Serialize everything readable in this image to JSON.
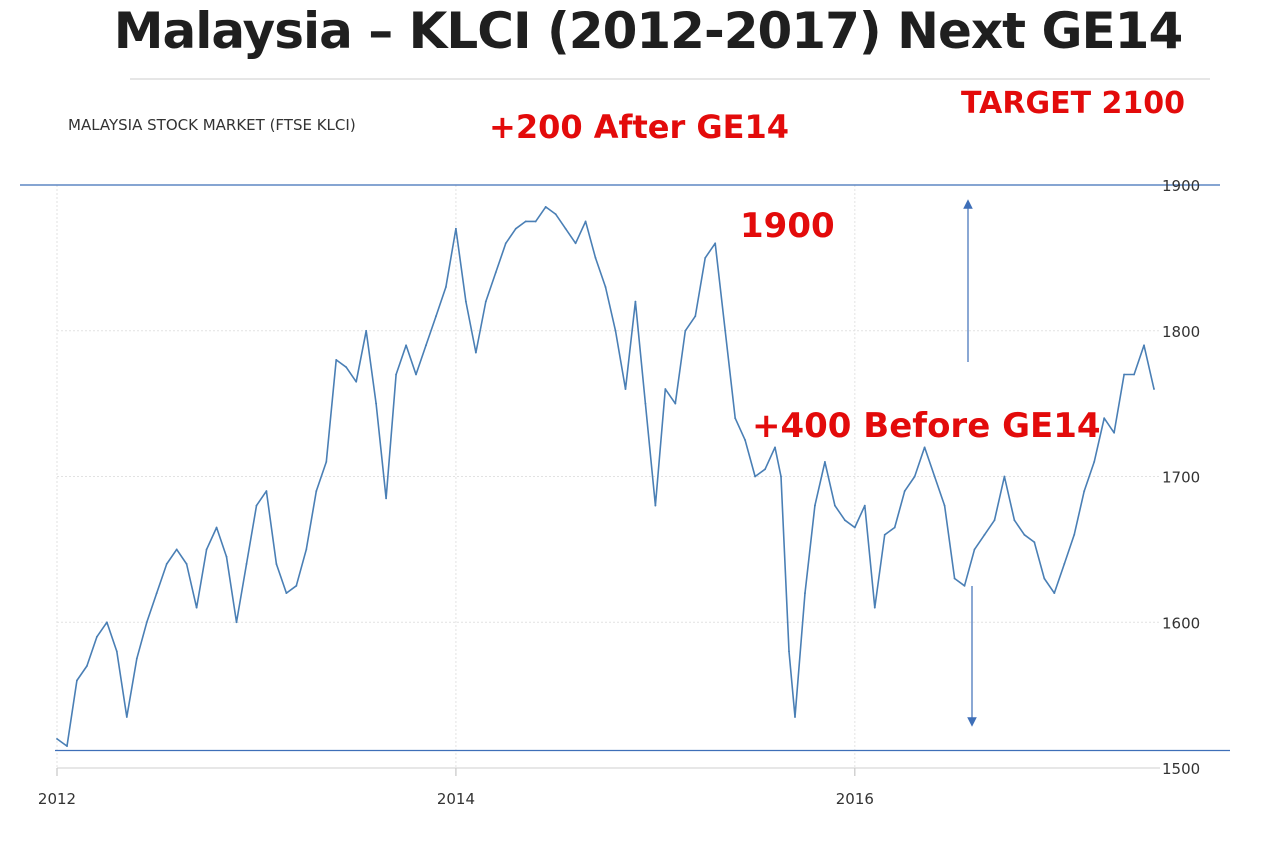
{
  "slide": {
    "title": "Malaysia – KLCI (2012-2017) Next GE14"
  },
  "annotations": {
    "after": "+200 After GE14",
    "target": "TARGET 2100",
    "level": "1900",
    "before": "+400 Before GE14"
  },
  "colors": {
    "line": "#4a7fb5",
    "annotation": "#e30b0b",
    "reference_line": "#3e6fb8",
    "grid": "#e2e2e2"
  },
  "chart_data": {
    "type": "line",
    "title": "MALAYSIA STOCK MARKET (FTSE KLCI)",
    "xlabel": "",
    "ylabel": "",
    "xlim": [
      2012.0,
      2017.53
    ],
    "ylim": [
      1500,
      1900
    ],
    "x_ticks": [
      "2012",
      "2014",
      "2016"
    ],
    "y_ticks": [
      1900,
      1800,
      1700,
      1600,
      1500
    ],
    "grid": true,
    "reference_lines": [
      1900,
      1512
    ],
    "series": [
      {
        "name": "",
        "x": [
          2012.0,
          2012.05,
          2012.1,
          2012.15,
          2012.2,
          2012.25,
          2012.3,
          2012.35,
          2012.4,
          2012.45,
          2012.5,
          2012.55,
          2012.6,
          2012.65,
          2012.7,
          2012.75,
          2012.8,
          2012.85,
          2012.9,
          2012.95,
          2013.0,
          2013.05,
          2013.1,
          2013.15,
          2013.2,
          2013.25,
          2013.3,
          2013.35,
          2013.4,
          2013.45,
          2013.5,
          2013.55,
          2013.6,
          2013.65,
          2013.7,
          2013.75,
          2013.8,
          2013.85,
          2013.9,
          2013.95,
          2014.0,
          2014.05,
          2014.1,
          2014.15,
          2014.2,
          2014.25,
          2014.3,
          2014.35,
          2014.4,
          2014.45,
          2014.5,
          2014.55,
          2014.6,
          2014.65,
          2014.7,
          2014.75,
          2014.8,
          2014.85,
          2014.9,
          2014.95,
          2015.0,
          2015.05,
          2015.1,
          2015.15,
          2015.2,
          2015.25,
          2015.3,
          2015.35,
          2015.4,
          2015.45,
          2015.5,
          2015.55,
          2015.6,
          2015.63,
          2015.67,
          2015.7,
          2015.75,
          2015.8,
          2015.85,
          2015.9,
          2015.95,
          2016.0,
          2016.05,
          2016.1,
          2016.15,
          2016.2,
          2016.25,
          2016.3,
          2016.35,
          2016.4,
          2016.45,
          2016.5,
          2016.55,
          2016.6,
          2016.65,
          2016.7,
          2016.75,
          2016.8,
          2016.85,
          2016.9,
          2016.95,
          2017.0,
          2017.05,
          2017.1,
          2017.15,
          2017.2,
          2017.25,
          2017.3,
          2017.35,
          2017.4,
          2017.45,
          2017.5
        ],
        "values": [
          1520,
          1515,
          1560,
          1570,
          1590,
          1600,
          1580,
          1535,
          1575,
          1600,
          1620,
          1640,
          1650,
          1640,
          1610,
          1650,
          1665,
          1645,
          1600,
          1640,
          1680,
          1690,
          1640,
          1620,
          1625,
          1650,
          1690,
          1710,
          1780,
          1775,
          1765,
          1800,
          1750,
          1685,
          1770,
          1790,
          1770,
          1790,
          1810,
          1830,
          1870,
          1820,
          1785,
          1820,
          1840,
          1860,
          1870,
          1875,
          1875,
          1885,
          1880,
          1870,
          1860,
          1875,
          1850,
          1830,
          1800,
          1760,
          1820,
          1750,
          1680,
          1760,
          1750,
          1800,
          1810,
          1850,
          1860,
          1800,
          1740,
          1725,
          1700,
          1705,
          1720,
          1700,
          1580,
          1535,
          1620,
          1680,
          1710,
          1680,
          1670,
          1665,
          1680,
          1610,
          1660,
          1665,
          1690,
          1700,
          1720,
          1700,
          1680,
          1630,
          1625,
          1650,
          1660,
          1670,
          1700,
          1670,
          1660,
          1655,
          1630,
          1620,
          1640,
          1660,
          1690,
          1710,
          1740,
          1730,
          1770,
          1770,
          1790,
          1760
        ]
      }
    ]
  }
}
